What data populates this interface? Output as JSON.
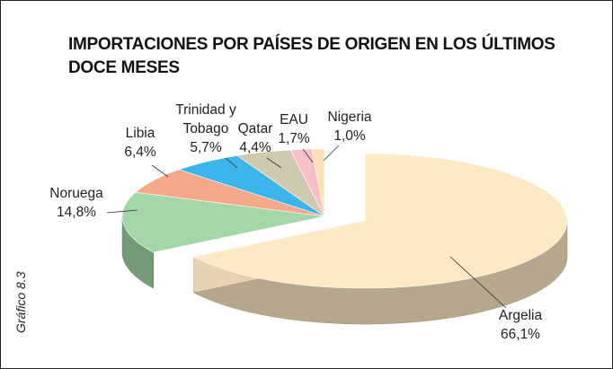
{
  "chart_data": {
    "type": "pie3d",
    "title": "IMPORTACIONES POR PAÍSES DE ORIGEN EN LOS ÚLTIMOS DOCE MESES",
    "side_label": "Gráfico 8.3",
    "categories": [
      "Argelia",
      "Noruega",
      "Libia",
      "Trinidad y Tobago",
      "Qatar",
      "EAU",
      "Nigeria"
    ],
    "values": [
      66.1,
      14.8,
      6.4,
      5.7,
      4.4,
      1.7,
      1.0
    ],
    "value_labels": [
      "66,1%",
      "14,8%",
      "6,4%",
      "5,7%",
      "4,4%",
      "1,7%",
      "1,0%"
    ],
    "colors": [
      "#fde9c4",
      "#a3d6a8",
      "#f4a98a",
      "#3db4ea",
      "#cfc9b0",
      "#f7bfc8",
      "#fde0b5"
    ],
    "exploded": "Argelia"
  }
}
